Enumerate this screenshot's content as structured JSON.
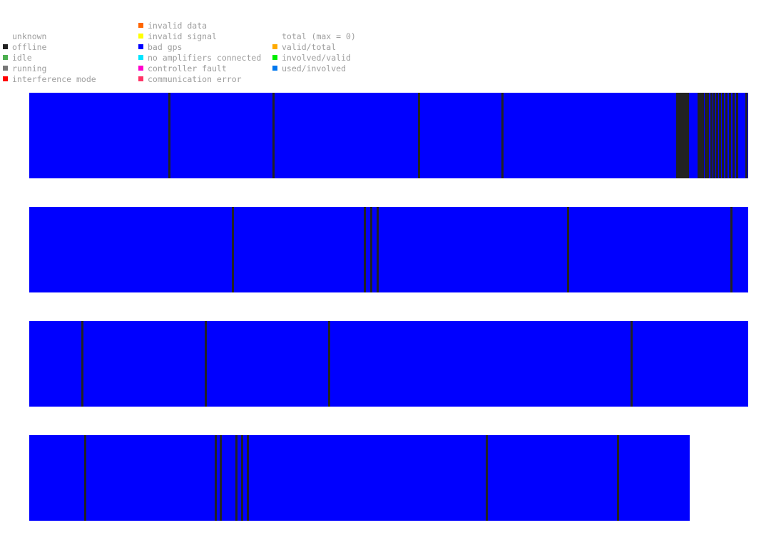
{
  "legend": {
    "col1": [
      {
        "label": "unknown",
        "color": ""
      },
      {
        "label": "offline",
        "color": "#222222"
      },
      {
        "label": "idle",
        "color": "#4caf50"
      },
      {
        "label": "running",
        "color": "#777777"
      },
      {
        "label": "interference mode",
        "color": "#ff0000"
      }
    ],
    "col2": [
      {
        "label": "invalid data",
        "color": "#ff6600"
      },
      {
        "label": "invalid signal",
        "color": "#ffff00"
      },
      {
        "label": "bad gps",
        "color": "#0000ff"
      },
      {
        "label": "no amplifiers connected",
        "color": "#00e5ff"
      },
      {
        "label": "controller fault",
        "color": "#ff00cc"
      },
      {
        "label": "communication error",
        "color": "#ff3366"
      }
    ],
    "col3": [
      {
        "label": "total (max = 0)",
        "color": ""
      },
      {
        "label": "valid/total",
        "color": "#ffaa00"
      },
      {
        "label": "involved/valid",
        "color": "#00ee00"
      },
      {
        "label": "used/involved",
        "color": "#0077ee"
      }
    ]
  },
  "colors": {
    "bad_gps": "#0000ff",
    "offline": "#222222"
  },
  "timelines": [
    {
      "name": "timeline-1",
      "fill_fraction": 1.0,
      "offline_marks": [
        0.193,
        0.338,
        0.541,
        0.657,
        0.9,
        0.903,
        0.906,
        0.909,
        0.912,
        0.915,
        0.93,
        0.933,
        0.936,
        0.939,
        0.942,
        0.947,
        0.951,
        0.955,
        0.959,
        0.963,
        0.968,
        0.973,
        0.978,
        0.983,
        0.996
      ]
    },
    {
      "name": "timeline-2",
      "fill_fraction": 1.0,
      "offline_marks": [
        0.282,
        0.465,
        0.474,
        0.483,
        0.748,
        0.975
      ]
    },
    {
      "name": "timeline-3",
      "fill_fraction": 1.0,
      "offline_marks": [
        0.072,
        0.244,
        0.416,
        0.836
      ]
    },
    {
      "name": "timeline-4",
      "fill_fraction": 0.919,
      "offline_marks": [
        0.076,
        0.258,
        0.265,
        0.287,
        0.295,
        0.303,
        0.635,
        0.817
      ]
    }
  ]
}
